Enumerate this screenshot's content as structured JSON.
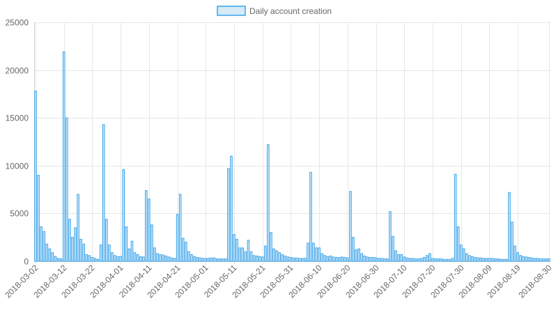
{
  "legend": {
    "label": "Daily account creation",
    "position": "top"
  },
  "colors": {
    "bar_fill": "#d6eaf8",
    "bar_stroke": "#36a2eb"
  },
  "chart_data": {
    "type": "bar",
    "title": "",
    "xlabel": "",
    "ylabel": "",
    "ylim": [
      0,
      25000
    ],
    "yticks": [
      0,
      5000,
      10000,
      15000,
      20000,
      25000
    ],
    "grid": true,
    "legend_position": "top",
    "x_tick_labels": [
      "2018-03-02",
      "2018-03-12",
      "2018-03-22",
      "2018-04-01",
      "2018-04-11",
      "2018-04-21",
      "2018-05-01",
      "2018-05-11",
      "2018-05-21",
      "2018-05-31",
      "2018-06-10",
      "2018-06-20",
      "2018-06-30",
      "2018-07-10",
      "2018-07-20",
      "2018-07-30",
      "2018-08-09",
      "2018-08-19",
      "2018-08-30"
    ],
    "categories": [
      "2018-03-02",
      "2018-03-03",
      "2018-03-04",
      "2018-03-05",
      "2018-03-06",
      "2018-03-07",
      "2018-03-08",
      "2018-03-09",
      "2018-03-10",
      "2018-03-11",
      "2018-03-12",
      "2018-03-13",
      "2018-03-14",
      "2018-03-15",
      "2018-03-16",
      "2018-03-17",
      "2018-03-18",
      "2018-03-19",
      "2018-03-20",
      "2018-03-21",
      "2018-03-22",
      "2018-03-23",
      "2018-03-24",
      "2018-03-25",
      "2018-03-26",
      "2018-03-27",
      "2018-03-28",
      "2018-03-29",
      "2018-03-30",
      "2018-03-31",
      "2018-04-01",
      "2018-04-02",
      "2018-04-03",
      "2018-04-04",
      "2018-04-05",
      "2018-04-06",
      "2018-04-07",
      "2018-04-08",
      "2018-04-09",
      "2018-04-10",
      "2018-04-11",
      "2018-04-12",
      "2018-04-13",
      "2018-04-14",
      "2018-04-15",
      "2018-04-16",
      "2018-04-17",
      "2018-04-18",
      "2018-04-19",
      "2018-04-20",
      "2018-04-21",
      "2018-04-22",
      "2018-04-23",
      "2018-04-24",
      "2018-04-25",
      "2018-04-26",
      "2018-04-27",
      "2018-04-28",
      "2018-04-29",
      "2018-04-30",
      "2018-05-01",
      "2018-05-02",
      "2018-05-03",
      "2018-05-04",
      "2018-05-05",
      "2018-05-06",
      "2018-05-07",
      "2018-05-08",
      "2018-05-09",
      "2018-05-10",
      "2018-05-11",
      "2018-05-12",
      "2018-05-13",
      "2018-05-14",
      "2018-05-15",
      "2018-05-16",
      "2018-05-17",
      "2018-05-18",
      "2018-05-19",
      "2018-05-20",
      "2018-05-21",
      "2018-05-22",
      "2018-05-23",
      "2018-05-24",
      "2018-05-25",
      "2018-05-26",
      "2018-05-27",
      "2018-05-28",
      "2018-05-29",
      "2018-05-30",
      "2018-05-31",
      "2018-06-01",
      "2018-06-02",
      "2018-06-03",
      "2018-06-04",
      "2018-06-05",
      "2018-06-06",
      "2018-06-07",
      "2018-06-08",
      "2018-06-09",
      "2018-06-10",
      "2018-06-11",
      "2018-06-12",
      "2018-06-13",
      "2018-06-14",
      "2018-06-15",
      "2018-06-16",
      "2018-06-17",
      "2018-06-18",
      "2018-06-19",
      "2018-06-20",
      "2018-06-21",
      "2018-06-22",
      "2018-06-23",
      "2018-06-24",
      "2018-06-25",
      "2018-06-26",
      "2018-06-27",
      "2018-06-28",
      "2018-06-29",
      "2018-06-30",
      "2018-07-01",
      "2018-07-02",
      "2018-07-03",
      "2018-07-04",
      "2018-07-05",
      "2018-07-06",
      "2018-07-07",
      "2018-07-08",
      "2018-07-09",
      "2018-07-10",
      "2018-07-11",
      "2018-07-12",
      "2018-07-13",
      "2018-07-14",
      "2018-07-15",
      "2018-07-16",
      "2018-07-17",
      "2018-07-18",
      "2018-07-19",
      "2018-07-20",
      "2018-07-21",
      "2018-07-22",
      "2018-07-23",
      "2018-07-24",
      "2018-07-25",
      "2018-07-26",
      "2018-07-27",
      "2018-07-28",
      "2018-07-29",
      "2018-07-30",
      "2018-07-31",
      "2018-08-01",
      "2018-08-02",
      "2018-08-03",
      "2018-08-04",
      "2018-08-05",
      "2018-08-06",
      "2018-08-07",
      "2018-08-08",
      "2018-08-09",
      "2018-08-10",
      "2018-08-11",
      "2018-08-12",
      "2018-08-13",
      "2018-08-14",
      "2018-08-15",
      "2018-08-16",
      "2018-08-17",
      "2018-08-18",
      "2018-08-19",
      "2018-08-20",
      "2018-08-21",
      "2018-08-22",
      "2018-08-23",
      "2018-08-24",
      "2018-08-25",
      "2018-08-26",
      "2018-08-27",
      "2018-08-28",
      "2018-08-29",
      "2018-08-30"
    ],
    "series": [
      {
        "name": "Daily account creation",
        "values": [
          17800,
          9000,
          3600,
          3100,
          1800,
          1300,
          900,
          500,
          300,
          250,
          21900,
          15000,
          4400,
          2500,
          3500,
          7000,
          2300,
          1800,
          700,
          600,
          400,
          300,
          200,
          1700,
          14300,
          4400,
          1700,
          900,
          600,
          500,
          500,
          9600,
          3600,
          1300,
          2100,
          900,
          700,
          500,
          450,
          7400,
          6500,
          3800,
          1400,
          800,
          700,
          650,
          550,
          450,
          350,
          300,
          4900,
          7000,
          2400,
          2000,
          1000,
          700,
          500,
          400,
          350,
          300,
          300,
          300,
          350,
          350,
          250,
          250,
          250,
          250,
          9700,
          11000,
          2800,
          2300,
          1400,
          1400,
          1000,
          2200,
          1000,
          600,
          550,
          500,
          450,
          1600,
          12200,
          3000,
          1300,
          1100,
          900,
          700,
          550,
          450,
          400,
          350,
          350,
          300,
          300,
          300,
          1900,
          9300,
          1900,
          1400,
          1400,
          800,
          600,
          500,
          550,
          450,
          400,
          400,
          450,
          400,
          350,
          7300,
          2500,
          1200,
          1300,
          800,
          550,
          450,
          400,
          400,
          350,
          300,
          300,
          250,
          250,
          5200,
          2600,
          1100,
          700,
          700,
          450,
          350,
          300,
          300,
          250,
          250,
          300,
          400,
          600,
          800,
          300,
          250,
          250,
          250,
          200,
          200,
          200,
          300,
          9100,
          3600,
          1700,
          1300,
          800,
          600,
          500,
          400,
          350,
          350,
          300,
          300,
          300,
          300,
          250,
          250,
          200,
          200,
          200,
          7200,
          4100,
          1600,
          900,
          600,
          500,
          450,
          400,
          350,
          300,
          300,
          250,
          250,
          250,
          250
        ]
      }
    ]
  }
}
